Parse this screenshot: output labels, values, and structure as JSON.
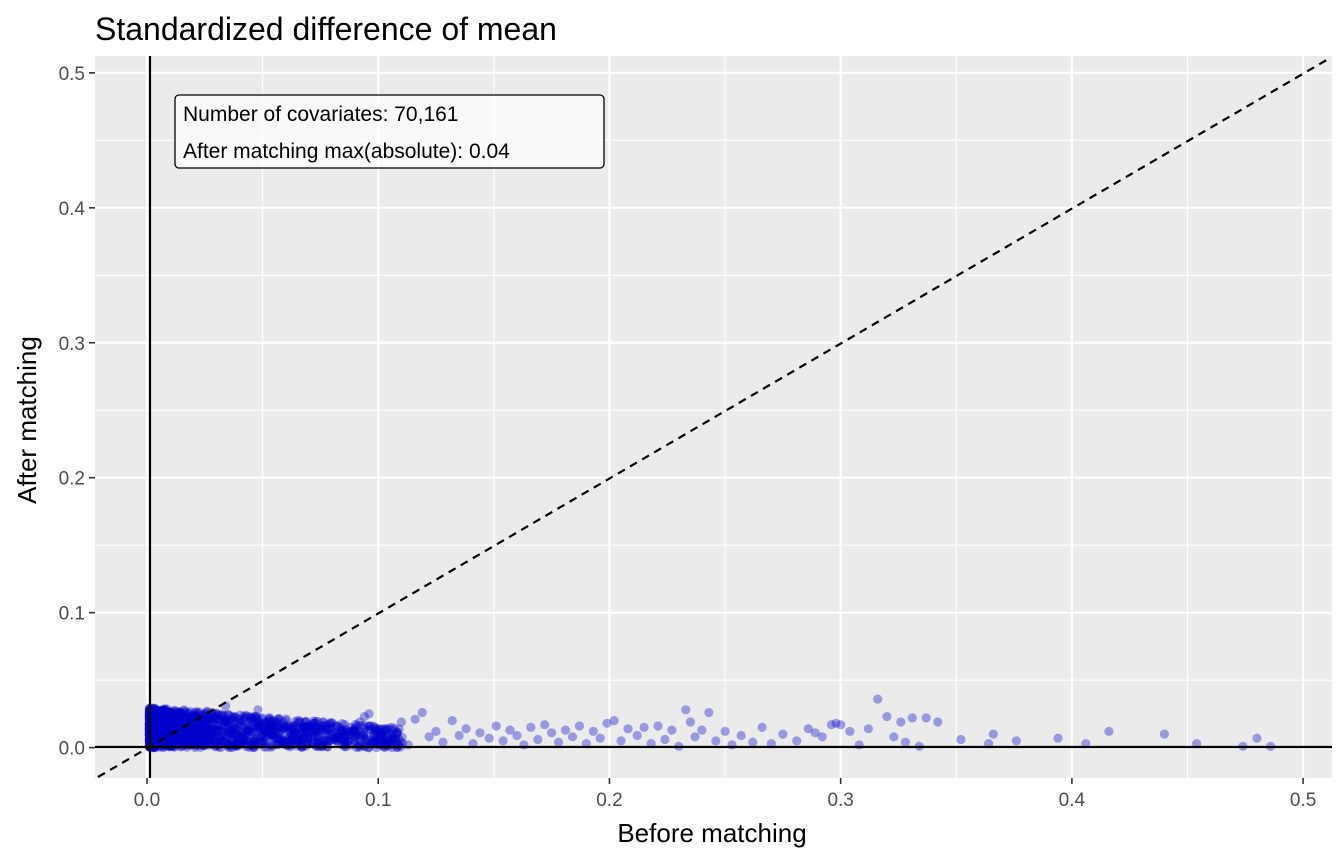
{
  "chart_data": {
    "type": "scatter",
    "title": "Standardized difference of mean",
    "xlabel": "Before matching",
    "ylabel": "After matching",
    "xlim": [
      -0.0225,
      0.5125
    ],
    "ylim": [
      -0.0225,
      0.5125
    ],
    "x_ticks": [
      0.0,
      0.1,
      0.2,
      0.3,
      0.4,
      0.5
    ],
    "y_ticks": [
      0.0,
      0.1,
      0.2,
      0.3,
      0.4,
      0.5
    ],
    "x_tick_labels": [
      "0.0",
      "0.1",
      "0.2",
      "0.3",
      "0.4",
      "0.5"
    ],
    "y_tick_labels": [
      "0.0",
      "0.1",
      "0.2",
      "0.3",
      "0.4",
      "0.5"
    ],
    "grid": true,
    "reference_lines": {
      "vertical_at": 0,
      "horizontal_at": 0,
      "diagonal": "y = x, dashed"
    },
    "annotation": {
      "line1": "Number of covariates: 70,161",
      "line2": "After matching max(absolute): 0.04"
    },
    "point_color": "#0000CC",
    "panel_background": "#EBEBEB",
    "gridline_color": "#FFFFFF",
    "points": [
      [
        0.004,
        0.003
      ],
      [
        0.006,
        0.012
      ],
      [
        0.008,
        0.02
      ],
      [
        0.01,
        0.008
      ],
      [
        0.012,
        0.024
      ],
      [
        0.014,
        0.015
      ],
      [
        0.016,
        0.028
      ],
      [
        0.018,
        0.005
      ],
      [
        0.02,
        0.022
      ],
      [
        0.022,
        0.011
      ],
      [
        0.024,
        0.018
      ],
      [
        0.026,
        0.027
      ],
      [
        0.028,
        0.009
      ],
      [
        0.03,
        0.016
      ],
      [
        0.032,
        0.024
      ],
      [
        0.034,
        0.031
      ],
      [
        0.036,
        0.007
      ],
      [
        0.038,
        0.014
      ],
      [
        0.04,
        0.021
      ],
      [
        0.042,
        0.005
      ],
      [
        0.044,
        0.012
      ],
      [
        0.046,
        0.019
      ],
      [
        0.048,
        0.028
      ],
      [
        0.05,
        0.01
      ],
      [
        0.052,
        0.004
      ],
      [
        0.054,
        0.017
      ],
      [
        0.056,
        0.008
      ],
      [
        0.058,
        0.013
      ],
      [
        0.06,
        0.002
      ],
      [
        0.062,
        0.016
      ],
      [
        0.064,
        0.011
      ],
      [
        0.066,
        0.006
      ],
      [
        0.068,
        0.015
      ],
      [
        0.07,
        0.003
      ],
      [
        0.072,
        0.018
      ],
      [
        0.074,
        0.009
      ],
      [
        0.076,
        0.013
      ],
      [
        0.078,
        0.005
      ],
      [
        0.08,
        0.011
      ],
      [
        0.082,
        0.016
      ],
      [
        0.084,
        0.007
      ],
      [
        0.086,
        0.002
      ],
      [
        0.088,
        0.012
      ],
      [
        0.09,
        0.008
      ],
      [
        0.092,
        0.019
      ],
      [
        0.094,
        0.023
      ],
      [
        0.096,
        0.025
      ],
      [
        0.098,
        0.004
      ],
      [
        0.1,
        0.01
      ],
      [
        0.103,
        0.014
      ],
      [
        0.106,
        0.006
      ],
      [
        0.11,
        0.019
      ],
      [
        0.113,
        0.002
      ],
      [
        0.116,
        0.021
      ],
      [
        0.119,
        0.026
      ],
      [
        0.122,
        0.008
      ],
      [
        0.125,
        0.012
      ],
      [
        0.128,
        0.004
      ],
      [
        0.132,
        0.02
      ],
      [
        0.135,
        0.009
      ],
      [
        0.138,
        0.014
      ],
      [
        0.141,
        0.003
      ],
      [
        0.144,
        0.011
      ],
      [
        0.148,
        0.007
      ],
      [
        0.151,
        0.016
      ],
      [
        0.154,
        0.005
      ],
      [
        0.157,
        0.013
      ],
      [
        0.16,
        0.009
      ],
      [
        0.163,
        0.002
      ],
      [
        0.166,
        0.015
      ],
      [
        0.169,
        0.006
      ],
      [
        0.172,
        0.017
      ],
      [
        0.175,
        0.011
      ],
      [
        0.178,
        0.004
      ],
      [
        0.181,
        0.013
      ],
      [
        0.184,
        0.008
      ],
      [
        0.187,
        0.016
      ],
      [
        0.19,
        0.003
      ],
      [
        0.193,
        0.012
      ],
      [
        0.196,
        0.007
      ],
      [
        0.199,
        0.018
      ],
      [
        0.202,
        0.02
      ],
      [
        0.205,
        0.005
      ],
      [
        0.208,
        0.014
      ],
      [
        0.212,
        0.009
      ],
      [
        0.215,
        0.015
      ],
      [
        0.218,
        0.003
      ],
      [
        0.221,
        0.016
      ],
      [
        0.224,
        0.006
      ],
      [
        0.227,
        0.013
      ],
      [
        0.23,
        0.001
      ],
      [
        0.233,
        0.028
      ],
      [
        0.235,
        0.019
      ],
      [
        0.237,
        0.008
      ],
      [
        0.24,
        0.013
      ],
      [
        0.243,
        0.026
      ],
      [
        0.246,
        0.005
      ],
      [
        0.25,
        0.012
      ],
      [
        0.253,
        0.002
      ],
      [
        0.257,
        0.009
      ],
      [
        0.262,
        0.004
      ],
      [
        0.266,
        0.015
      ],
      [
        0.27,
        0.003
      ],
      [
        0.275,
        0.01
      ],
      [
        0.281,
        0.005
      ],
      [
        0.286,
        0.014
      ],
      [
        0.289,
        0.011
      ],
      [
        0.292,
        0.008
      ],
      [
        0.296,
        0.017
      ],
      [
        0.298,
        0.018
      ],
      [
        0.3,
        0.017
      ],
      [
        0.304,
        0.012
      ],
      [
        0.308,
        0.002
      ],
      [
        0.312,
        0.014
      ],
      [
        0.316,
        0.036
      ],
      [
        0.32,
        0.023
      ],
      [
        0.323,
        0.008
      ],
      [
        0.326,
        0.019
      ],
      [
        0.328,
        0.004
      ],
      [
        0.331,
        0.022
      ],
      [
        0.334,
        0.001
      ],
      [
        0.337,
        0.022
      ],
      [
        0.342,
        0.019
      ],
      [
        0.352,
        0.006
      ],
      [
        0.364,
        0.003
      ],
      [
        0.366,
        0.01
      ],
      [
        0.376,
        0.005
      ],
      [
        0.394,
        0.007
      ],
      [
        0.406,
        0.003
      ],
      [
        0.416,
        0.012
      ],
      [
        0.44,
        0.01
      ],
      [
        0.454,
        0.003
      ],
      [
        0.474,
        0.001
      ],
      [
        0.48,
        0.007
      ],
      [
        0.486,
        0.001
      ]
    ]
  }
}
